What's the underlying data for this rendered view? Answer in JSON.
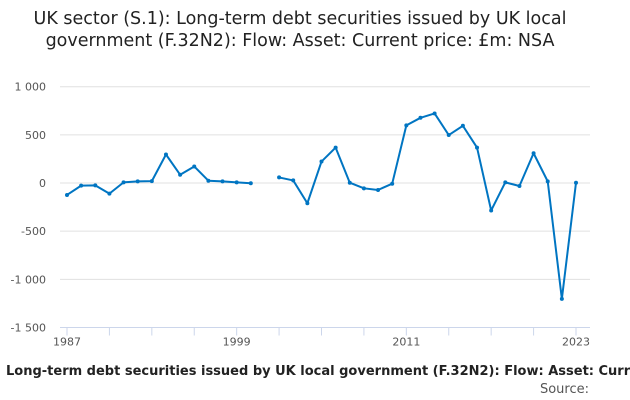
{
  "chart_data": {
    "type": "line",
    "title": "UK sector (S.1): Long-term debt securities issued by UK local government (F.32N2): Flow: Asset: Current price: £m: NSA",
    "x": [
      1987,
      1988,
      1989,
      1990,
      1991,
      1992,
      1993,
      1994,
      1995,
      1996,
      1997,
      1998,
      1999,
      2000,
      2001,
      2002,
      2003,
      2004,
      2005,
      2006,
      2007,
      2008,
      2009,
      2010,
      2011,
      2012,
      2013,
      2014,
      2015,
      2016,
      2017,
      2018,
      2019,
      2020,
      2021,
      2022,
      2023
    ],
    "series": [
      {
        "name": "Long-term debt securities issued by UK local government (F.32N2): Flow: Asset: Curr",
        "values": [
          -124,
          -27,
          -24,
          -110,
          7,
          17,
          20,
          296,
          86,
          172,
          24,
          17,
          7,
          -3,
          null,
          58,
          27,
          -210,
          223,
          368,
          3,
          -55,
          -72,
          -7,
          598,
          677,
          722,
          498,
          594,
          368,
          -285,
          7,
          -31,
          309,
          17,
          -1203,
          3
        ],
        "color": "#0075c2"
      }
    ],
    "xlim": [
      1987,
      2023
    ],
    "ylim": [
      -1500,
      1000
    ],
    "xticks": [
      1987,
      1999,
      2011,
      2023
    ],
    "xtick_labels": [
      "1987",
      "1999",
      "2011",
      "2023"
    ],
    "yticks": [
      1000,
      500,
      0,
      -500,
      -1000,
      -1500
    ],
    "ytick_labels": [
      "1 000",
      "500",
      "0",
      "-500",
      "-1 000",
      "-1 500"
    ],
    "grid": true,
    "source_label": "Source:"
  }
}
